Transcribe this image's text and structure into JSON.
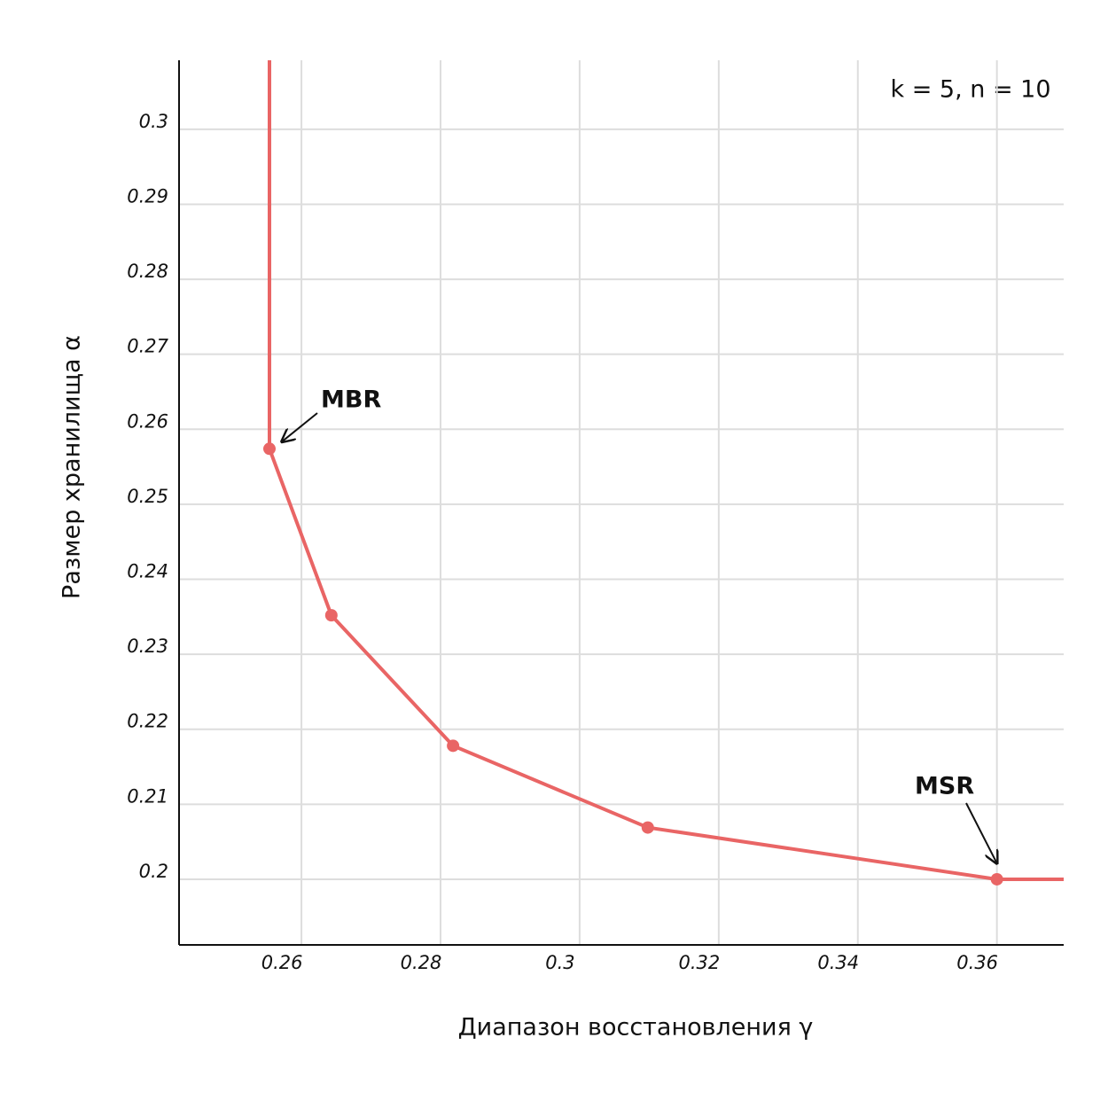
{
  "chart_data": {
    "type": "line",
    "annotation": "k = 5, n = 10",
    "x_label": "Диапазон восстановления γ",
    "y_label": "Размер хранилища α",
    "color": "#e96565",
    "x": [
      0.2554,
      0.2554,
      0.2643,
      0.2818,
      0.3098,
      0.36,
      0.3696
    ],
    "values": [
      0.3092,
      0.2574,
      0.2352,
      0.2178,
      0.2069,
      0.2,
      0.2
    ],
    "points": {
      "x": [
        0.2554,
        0.2643,
        0.2818,
        0.3098,
        0.36
      ],
      "y": [
        0.2574,
        0.2352,
        0.2178,
        0.2069,
        0.2
      ]
    },
    "labels": [
      {
        "text": "MBR",
        "point": 0
      },
      {
        "text": "MSR",
        "point": 4
      }
    ],
    "xlim": [
      0.2424,
      0.3696
    ],
    "ylim": [
      0.19125,
      0.3092
    ],
    "xticks": [
      0.26,
      0.28,
      0.3,
      0.32,
      0.34,
      0.36
    ],
    "yticks": [
      0.2,
      0.21,
      0.22,
      0.23,
      0.24,
      0.25,
      0.26,
      0.27,
      0.28,
      0.29,
      0.3
    ],
    "grid": true
  }
}
